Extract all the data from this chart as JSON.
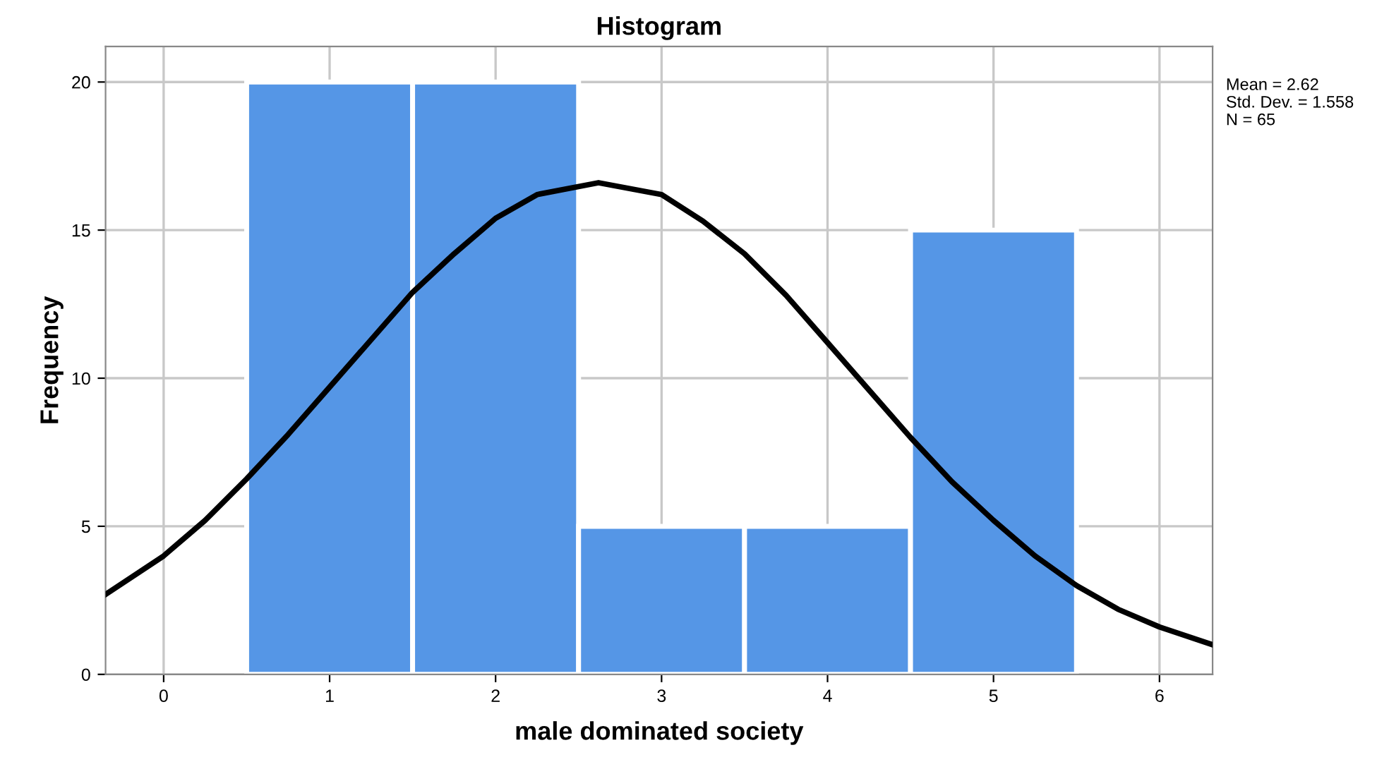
{
  "chart_data": {
    "type": "histogram",
    "title": "Histogram",
    "xlabel": "male dominated society",
    "ylabel": "Frequency",
    "bins": [
      0.5,
      1.5,
      2.5,
      3.5,
      4.5,
      5.5
    ],
    "series": [
      {
        "color": "#5596e6",
        "values": [
          20,
          20,
          5,
          5,
          15
        ]
      },
      {
        "type": "line",
        "color": "#000000",
        "x": [
          -0.35,
          0,
          0.25,
          0.5,
          0.75,
          1,
          1.25,
          1.5,
          1.75,
          2,
          2.25,
          2.62,
          3,
          3.25,
          3.5,
          3.75,
          4,
          4.25,
          4.5,
          4.75,
          5,
          5.25,
          5.5,
          5.75,
          6,
          6.32
        ],
        "values": [
          2.7,
          4.0,
          5.2,
          6.6,
          8.1,
          9.7,
          11.3,
          12.9,
          14.2,
          15.4,
          16.2,
          16.6,
          16.2,
          15.3,
          14.2,
          12.8,
          11.2,
          9.6,
          8.0,
          6.5,
          5.2,
          4.0,
          3.0,
          2.2,
          1.6,
          1.0
        ]
      }
    ],
    "xlim": [
      -0.35,
      6.32
    ],
    "xticks": [
      0,
      1,
      2,
      3,
      4,
      5,
      6
    ],
    "ylim": [
      0,
      21.2
    ],
    "yticks": [
      0,
      5,
      10,
      15,
      20
    ],
    "grid": true,
    "annotations": [
      "Mean = 2.62",
      "Std. Dev. = 1.558",
      "N = 65"
    ]
  }
}
